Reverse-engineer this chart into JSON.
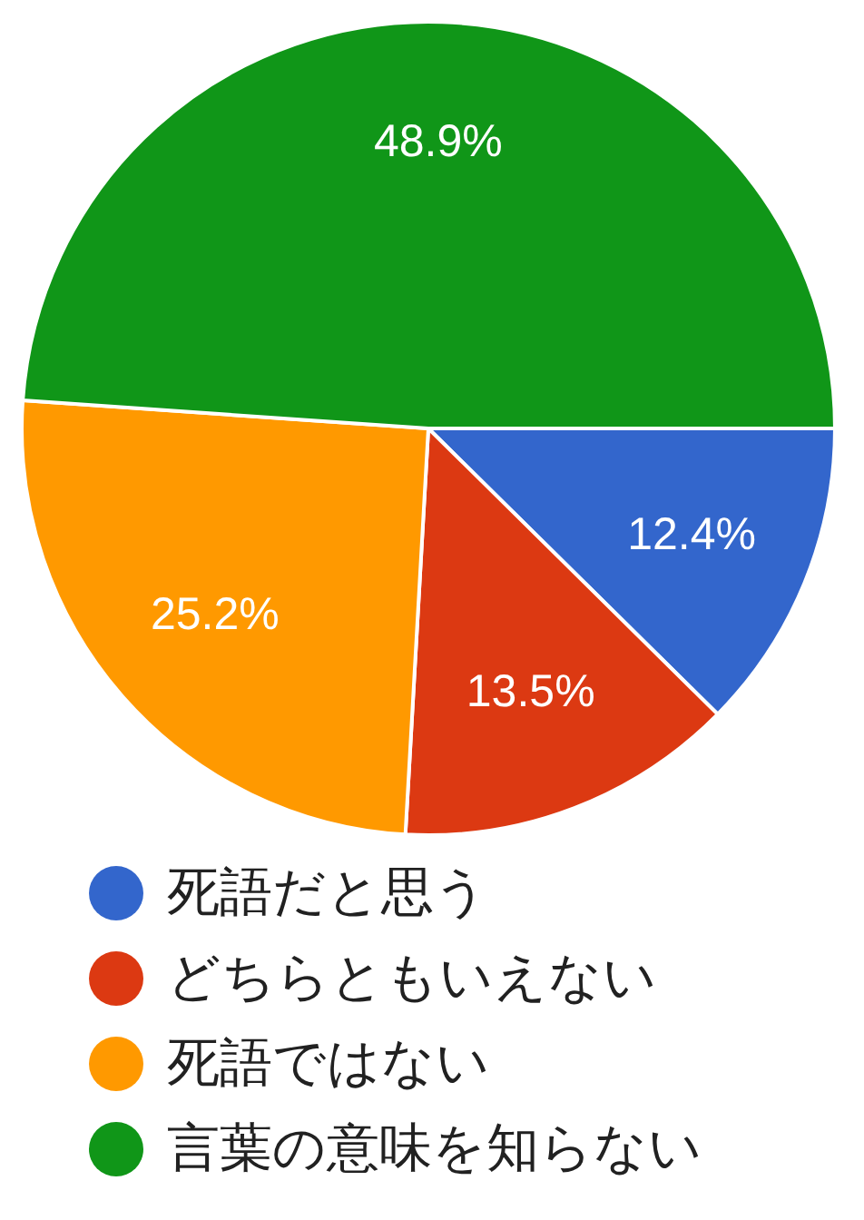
{
  "chart_data": {
    "type": "pie",
    "categories": [
      "死語だと思う",
      "どちらともいえない",
      "死語ではない",
      "言葉の意味を知らない"
    ],
    "values": [
      12.4,
      13.5,
      25.2,
      48.9
    ],
    "colors": [
      "#3366cc",
      "#dc3912",
      "#ff9900",
      "#109618"
    ],
    "value_labels": [
      "12.4%",
      "13.5%",
      "25.2%",
      "48.9%"
    ],
    "legend": "bottom"
  }
}
